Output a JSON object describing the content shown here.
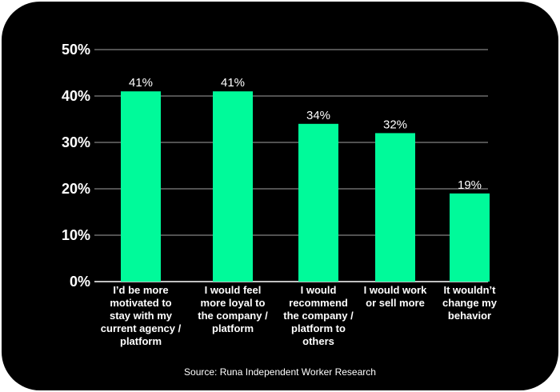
{
  "colors": {
    "background": "#000000",
    "bar": "#00fa9a",
    "text": "#ffffff",
    "grid": "#ffffff"
  },
  "source": "Source: Runa Independent Worker Research",
  "chart_data": {
    "type": "bar",
    "title": "",
    "xlabel": "",
    "ylabel": "",
    "ylim": [
      0,
      50
    ],
    "yticks": [
      "0%",
      "10%",
      "20%",
      "30%",
      "40%",
      "50%"
    ],
    "grid": true,
    "legend": "none",
    "categories": [
      "I’d be more motivated to stay with my current agency / platform",
      "I would feel more loyal to the company / platform",
      "I would recommend the company / platform to others",
      "I would work or sell more",
      "It wouldn’t change my behavior"
    ],
    "category_lines": [
      "I’d be more\nmotivated to\nstay with my\ncurrent agency /\nplatform",
      "I would feel\nmore loyal to\nthe company /\nplatform",
      "I would\nrecommend\nthe company /\nplatform to\nothers",
      "I would work\nor sell more",
      "It wouldn’t\nchange my\nbehavior"
    ],
    "values": [
      41,
      41,
      34,
      32,
      19
    ],
    "value_labels": [
      "41%",
      "41%",
      "34%",
      "32%",
      "19%"
    ]
  }
}
